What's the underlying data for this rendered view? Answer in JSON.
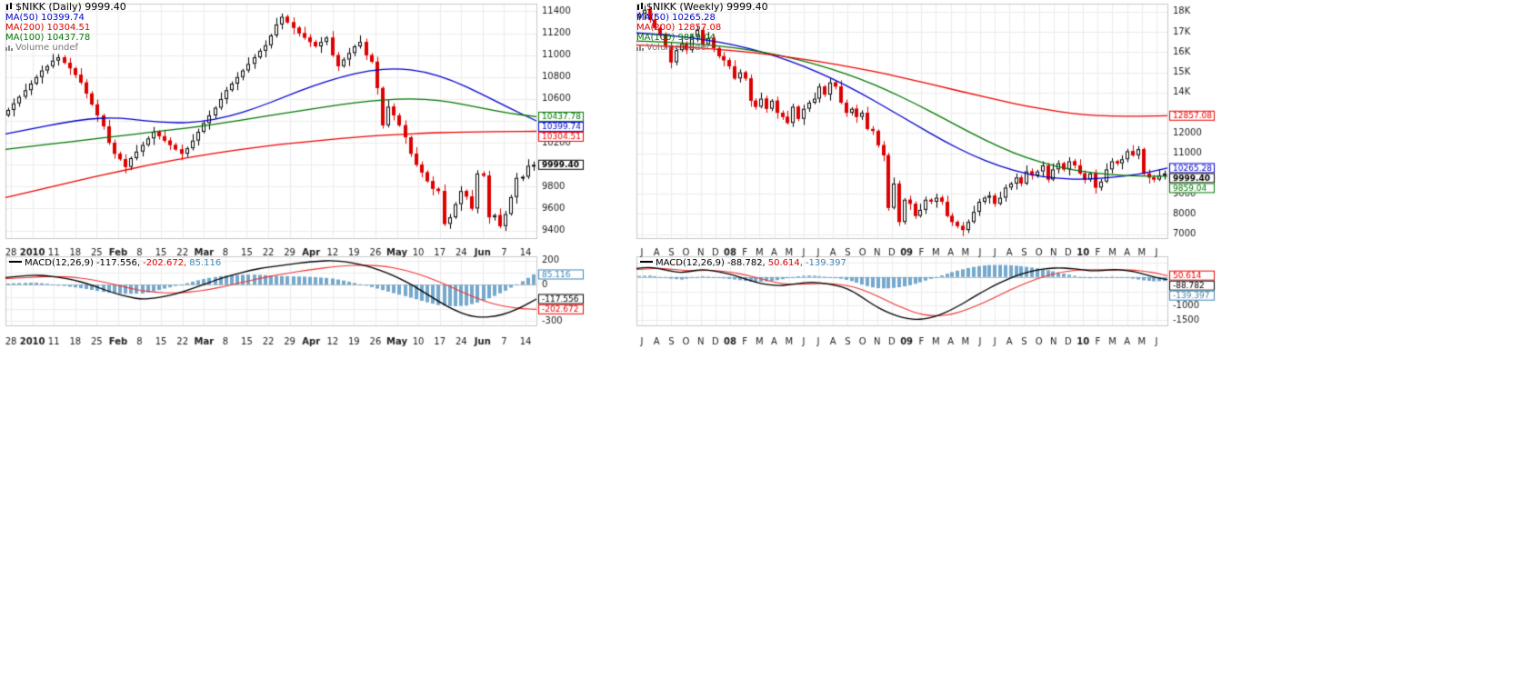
{
  "page": {
    "background": "#ffffff"
  },
  "chart_data": [
    {
      "type": "candlestick",
      "symbol": "$NIKK",
      "timeframe": "Daily",
      "last_price": 9999.4,
      "legend": {
        "title": "$NIKK (Daily) 9999.40",
        "ma50": "MA(50) 10399.74",
        "ma200": "MA(200) 10304.51",
        "ma100": "MA(100) 10437.78",
        "volume": "Volume undef"
      },
      "colors": {
        "ma50": "#0000cc",
        "ma200": "#ee0000",
        "ma100": "#007700",
        "up": "#000000",
        "down": "#dd0000",
        "hist": "#74a8cc",
        "macd": "#000000",
        "signal": "#ee3333",
        "grid": "#ececec"
      },
      "price_panel": {
        "ylim": [
          9330,
          11470
        ],
        "gridlines": [
          9400,
          9600,
          9800,
          10000,
          10200,
          10400,
          10600,
          10800,
          11000,
          11200,
          11400
        ],
        "ticks": [
          {
            "v": 11400,
            "t": "11400"
          },
          {
            "v": 11200,
            "t": "11200"
          },
          {
            "v": 11000,
            "t": "11000"
          },
          {
            "v": 10800,
            "t": "10800"
          },
          {
            "v": 10600,
            "t": "10600"
          },
          {
            "v": 10200,
            "t": "10200"
          },
          {
            "v": 9800,
            "t": "9800"
          },
          {
            "v": 9600,
            "t": "9600"
          },
          {
            "v": 9400,
            "t": "9400"
          }
        ],
        "value_boxes": [
          {
            "v": 10437.78,
            "t": "10437.78",
            "c": "#007700"
          },
          {
            "v": 10399.74,
            "t": "10399.74",
            "c": "#0000cc"
          },
          {
            "v": 10304.51,
            "t": "10304.51",
            "c": "#ee0000"
          },
          {
            "v": 9999.4,
            "t": "9999.40",
            "c": "#000000",
            "bold": true
          }
        ],
        "first_open": 10450,
        "wick_pattern": [
          20,
          45,
          15,
          60,
          30
        ],
        "closes": [
          10500,
          10560,
          10620,
          10680,
          10740,
          10800,
          10860,
          10900,
          10950,
          10980,
          10930,
          10880,
          10820,
          10750,
          10650,
          10550,
          10450,
          10350,
          10200,
          10100,
          10050,
          9980,
          10060,
          10120,
          10180,
          10240,
          10300,
          10260,
          10220,
          10180,
          10140,
          10100,
          10150,
          10220,
          10300,
          10380,
          10450,
          10520,
          10600,
          10680,
          10740,
          10800,
          10860,
          10920,
          10980,
          11040,
          11090,
          11180,
          11280,
          11350,
          11300,
          11250,
          11200,
          11160,
          11120,
          11080,
          11120,
          11160,
          11000,
          10900,
          10960,
          11020,
          11080,
          11120,
          11000,
          10940,
          10700,
          10360,
          10530,
          10450,
          10360,
          10250,
          10100,
          10000,
          9930,
          9850,
          9780,
          9760,
          9460,
          9520,
          9640,
          9760,
          9710,
          9600,
          9920,
          9900,
          9520,
          9540,
          9440,
          9550,
          9705,
          9880,
          9890,
          9990,
          9999.4
        ],
        "ma": [
          {
            "name": "MA(50)",
            "color": "#0000cc",
            "points": [
              10280,
              10330,
              10380,
              10420,
              10430,
              10400,
              10380,
              10390,
              10440,
              10520,
              10620,
              10720,
              10800,
              10860,
              10880,
              10850,
              10770,
              10650,
              10520,
              10400
            ]
          },
          {
            "name": "MA(100)",
            "color": "#007700",
            "points": [
              10140,
              10170,
              10200,
              10230,
              10260,
              10290,
              10320,
              10350,
              10390,
              10430,
              10470,
              10510,
              10550,
              10580,
              10600,
              10600,
              10570,
              10520,
              10470,
              10438
            ]
          },
          {
            "name": "MA(200)",
            "color": "#ee0000",
            "points": [
              9700,
              9760,
              9820,
              9880,
              9935,
              9990,
              10040,
              10085,
              10125,
              10160,
              10190,
              10215,
              10240,
              10260,
              10275,
              10288,
              10296,
              10300,
              10303,
              10304.5
            ]
          }
        ]
      },
      "x_labels": [
        {
          "t": "28"
        },
        {
          "t": "2010",
          "b": 1
        },
        {
          "t": "11"
        },
        {
          "t": "18"
        },
        {
          "t": "25"
        },
        {
          "t": "Feb",
          "b": 1
        },
        {
          "t": "8"
        },
        {
          "t": "15"
        },
        {
          "t": "22"
        },
        {
          "t": "Mar",
          "b": 1
        },
        {
          "t": "8"
        },
        {
          "t": "15"
        },
        {
          "t": "22"
        },
        {
          "t": "29"
        },
        {
          "t": "Apr",
          "b": 1
        },
        {
          "t": "12"
        },
        {
          "t": "19"
        },
        {
          "t": "26"
        },
        {
          "t": "May",
          "b": 1
        },
        {
          "t": "10"
        },
        {
          "t": "17"
        },
        {
          "t": "24"
        },
        {
          "t": "Jun",
          "b": 1
        },
        {
          "t": "7"
        },
        {
          "t": "14"
        }
      ],
      "macd_panel": {
        "label": "MACD(12,26,9)",
        "v_macd": "-117.556,",
        "v_signal": "-202.672,",
        "v_hist": "85.116",
        "ylim": [
          -335,
          235
        ],
        "gridlines": [
          200,
          100,
          0,
          -100,
          -200,
          -300
        ],
        "ticks": [
          {
            "v": 200,
            "t": "200"
          },
          {
            "v": 0,
            "t": "0"
          },
          {
            "v": -300,
            "t": "-300"
          }
        ],
        "value_boxes": [
          {
            "v": 85.116,
            "t": "85.116",
            "c": "#3d85b8"
          },
          {
            "v": -117.556,
            "t": "-117.556",
            "c": "#000000"
          },
          {
            "v": -202.672,
            "t": "-202.672",
            "c": "#ee0000"
          }
        ],
        "macd": [
          60,
          70,
          80,
          75,
          60,
          40,
          10,
          -30,
          -70,
          -100,
          -120,
          -110,
          -90,
          -60,
          -20,
          20,
          60,
          90,
          120,
          140,
          155,
          170,
          185,
          195,
          200,
          190,
          170,
          140,
          100,
          50,
          -10,
          -80,
          -150,
          -210,
          -255,
          -270,
          -260,
          -230,
          -180,
          -117.556
        ],
        "signal": [
          50,
          55,
          62,
          68,
          68,
          62,
          48,
          28,
          2,
          -25,
          -48,
          -62,
          -68,
          -65,
          -55,
          -38,
          -15,
          10,
          35,
          60,
          82,
          100,
          118,
          133,
          147,
          157,
          162,
          160,
          150,
          130,
          100,
          62,
          18,
          -32,
          -82,
          -128,
          -163,
          -185,
          -198,
          -202.672
        ]
      }
    },
    {
      "type": "candlestick",
      "symbol": "$NIKK",
      "timeframe": "Weekly",
      "last_price": 9999.4,
      "legend": {
        "title": "$NIKK (Weekly) 9999.40",
        "ma50": "MA(50) 10265.28",
        "ma200": "MA(200) 12857.08",
        "ma100": "MA(100) 9859.04",
        "volume": "Volume undef"
      },
      "colors": {
        "ma50": "#0000cc",
        "ma200": "#ee0000",
        "ma100": "#007700",
        "up": "#000000",
        "down": "#dd0000",
        "hist": "#74a8cc",
        "macd": "#000000",
        "signal": "#ee3333",
        "grid": "#ececec"
      },
      "price_panel": {
        "ylim": [
          6800,
          18400
        ],
        "gridlines": [
          7000,
          8000,
          9000,
          10000,
          11000,
          12000,
          13000,
          14000,
          15000,
          16000,
          17000,
          18000
        ],
        "ticks": [
          {
            "v": 18000,
            "t": "18K"
          },
          {
            "v": 17000,
            "t": "17K"
          },
          {
            "v": 16000,
            "t": "16K"
          },
          {
            "v": 15000,
            "t": "15K"
          },
          {
            "v": 14000,
            "t": "14K"
          },
          {
            "v": 12000,
            "t": "12000"
          },
          {
            "v": 11000,
            "t": "11000"
          },
          {
            "v": 9000,
            "t": "9000"
          },
          {
            "v": 8000,
            "t": "8000"
          },
          {
            "v": 7000,
            "t": "7000"
          }
        ],
        "value_boxes": [
          {
            "v": 12857.08,
            "t": "12857.08",
            "c": "#ee0000"
          },
          {
            "v": 10265.28,
            "t": "10265.28",
            "c": "#0000cc"
          },
          {
            "v": 9999.4,
            "t": "9999.40",
            "c": "#000000",
            "bold": true
          },
          {
            "v": 9859.04,
            "t": "9859.04",
            "c": "#007700"
          }
        ],
        "first_open": 17700,
        "wick_pattern": [
          80,
          200,
          120,
          300,
          150
        ],
        "closes": [
          17900,
          18100,
          17600,
          17200,
          16900,
          16300,
          15500,
          16100,
          16400,
          16100,
          16800,
          17100,
          16400,
          16700,
          16200,
          15800,
          15600,
          15300,
          14700,
          15000,
          14700,
          13600,
          13300,
          13700,
          13200,
          13600,
          13000,
          12800,
          12500,
          13300,
          12700,
          13200,
          13500,
          13700,
          14300,
          13900,
          14500,
          14300,
          13500,
          13000,
          13200,
          12800,
          13000,
          12200,
          12100,
          11400,
          10900,
          8300,
          9500,
          7600,
          8700,
          8500,
          7900,
          8200,
          8700,
          8600,
          8800,
          8600,
          7900,
          7600,
          7400,
          7200,
          7600,
          8100,
          8600,
          8800,
          8900,
          8500,
          8800,
          9300,
          9500,
          9800,
          9500,
          10100,
          9900,
          10100,
          10400,
          9700,
          10200,
          10500,
          10200,
          10600,
          10400,
          10000,
          9700,
          10000,
          9300,
          9600,
          10200,
          10600,
          10500,
          10700,
          11100,
          10900,
          11200,
          10000,
          9800,
          9700,
          9900,
          9999.4
        ],
        "ma": [
          {
            "name": "MA(50)",
            "color": "#0000cc",
            "points": [
              16950,
              16850,
              16700,
              16500,
              16200,
              15800,
              15300,
              14700,
              14000,
              13200,
              12400,
              11600,
              10900,
              10350,
              9950,
              9750,
              9700,
              9800,
              9950,
              10265
            ]
          },
          {
            "name": "MA(100)",
            "color": "#007700",
            "points": [
              16550,
              16500,
              16420,
              16300,
              16120,
              15880,
              15560,
              15160,
              14680,
              14100,
              13440,
              12720,
              11980,
              11300,
              10750,
              10350,
              10080,
              9930,
              9870,
              9859
            ]
          },
          {
            "name": "MA(200)",
            "color": "#ee0000",
            "points": [
              16350,
              16300,
              16230,
              16130,
              16000,
              15840,
              15650,
              15430,
              15180,
              14900,
              14590,
              14260,
              13930,
              13610,
              13320,
              13080,
              12900,
              12830,
              12830,
              12857
            ]
          }
        ]
      },
      "x_labels": [
        {
          "t": "J"
        },
        {
          "t": "A"
        },
        {
          "t": "S"
        },
        {
          "t": "O"
        },
        {
          "t": "N"
        },
        {
          "t": "D"
        },
        {
          "t": "08",
          "b": 1
        },
        {
          "t": "F"
        },
        {
          "t": "M"
        },
        {
          "t": "A"
        },
        {
          "t": "M"
        },
        {
          "t": "J"
        },
        {
          "t": "J"
        },
        {
          "t": "A"
        },
        {
          "t": "S"
        },
        {
          "t": "O"
        },
        {
          "t": "N"
        },
        {
          "t": "D"
        },
        {
          "t": "09",
          "b": 1
        },
        {
          "t": "F"
        },
        {
          "t": "M"
        },
        {
          "t": "A"
        },
        {
          "t": "M"
        },
        {
          "t": "J"
        },
        {
          "t": "J"
        },
        {
          "t": "A"
        },
        {
          "t": "S"
        },
        {
          "t": "O"
        },
        {
          "t": "N"
        },
        {
          "t": "D"
        },
        {
          "t": "10",
          "b": 1
        },
        {
          "t": "F"
        },
        {
          "t": "M"
        },
        {
          "t": "A"
        },
        {
          "t": "M"
        },
        {
          "t": "J"
        }
      ],
      "macd_panel": {
        "label": "MACD(12,26,9)",
        "v_macd": "-88.782,",
        "v_signal": "50.614,",
        "v_hist": "-139.397",
        "ylim": [
          -1680,
          720
        ],
        "gridlines": [
          500,
          0,
          -500,
          -1000,
          -1500
        ],
        "ticks": [
          {
            "v": -500,
            "t": "-500"
          },
          {
            "v": -1000,
            "t": "-1000"
          },
          {
            "v": -1500,
            "t": "-1500"
          }
        ],
        "value_boxes": [
          {
            "v": 50.614,
            "t": "50.614",
            "c": "#ee0000"
          },
          {
            "v": -88.782,
            "t": "-88.782",
            "c": "#000000"
          },
          {
            "v": -139.397,
            "t": "-139.397",
            "c": "#3d85b8"
          }
        ],
        "macd": [
          300,
          340,
          300,
          220,
          150,
          200,
          260,
          220,
          150,
          60,
          -60,
          -180,
          -260,
          -300,
          -280,
          -220,
          -180,
          -200,
          -260,
          -340,
          -500,
          -750,
          -1000,
          -1200,
          -1350,
          -1450,
          -1480,
          -1430,
          -1320,
          -1150,
          -950,
          -720,
          -500,
          -300,
          -120,
          40,
          160,
          250,
          300,
          320,
          300,
          260,
          210,
          230,
          260,
          240,
          180,
          80,
          -20,
          -88.782
        ],
        "signal": [
          260,
          290,
          300,
          280,
          240,
          220,
          230,
          230,
          200,
          150,
          80,
          -10,
          -110,
          -200,
          -250,
          -255,
          -235,
          -225,
          -235,
          -270,
          -340,
          -460,
          -620,
          -800,
          -980,
          -1140,
          -1270,
          -1340,
          -1350,
          -1300,
          -1200,
          -1060,
          -900,
          -720,
          -540,
          -360,
          -200,
          -60,
          60,
          150,
          215,
          250,
          255,
          250,
          250,
          250,
          235,
          195,
          130,
          50.614
        ]
      }
    }
  ]
}
